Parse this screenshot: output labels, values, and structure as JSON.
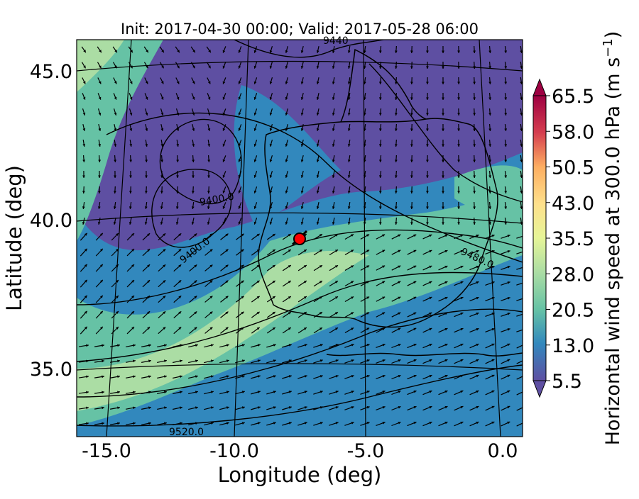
{
  "title": "Init: 2017-04-30 00:00; Valid: 2017-05-28 06:00",
  "xlabel": "Longitude (deg)",
  "ylabel": "Latitude (deg)",
  "colorbar_label": "Horizontal wind speed at 300.0 hPa (m s",
  "colorbar_label_sup": "−1",
  "colorbar_label_close": ")",
  "x_ticks": [
    "-15.0",
    "-10.0",
    "-5.0",
    "0.0"
  ],
  "y_ticks": [
    "45.0",
    "40.0",
    "35.0"
  ],
  "colorbar_ticks": [
    "65.5",
    "58.0",
    "50.5",
    "43.0",
    "35.5",
    "28.0",
    "20.5",
    "13.0",
    "5.5"
  ],
  "contour_labels": [
    "9400.0",
    "9400.0",
    "9480.0",
    "9520.0",
    "9440"
  ],
  "colors": {
    "low": "#5e4fa2",
    "mid_low": "#3288bd",
    "mid": "#66c2a5",
    "mid_high": "#abdda4",
    "yellow": "#fee08b",
    "orange": "#fdae61",
    "red": "#d53e4f",
    "high": "#9e0142",
    "marker": "#ff0000"
  },
  "map": {
    "region": "Iberian Peninsula",
    "lon_range": [
      -15.8,
      0.2
    ],
    "lat_range": [
      32.8,
      46.2
    ],
    "marker_lon": -7.7,
    "marker_lat": 39.3
  }
}
